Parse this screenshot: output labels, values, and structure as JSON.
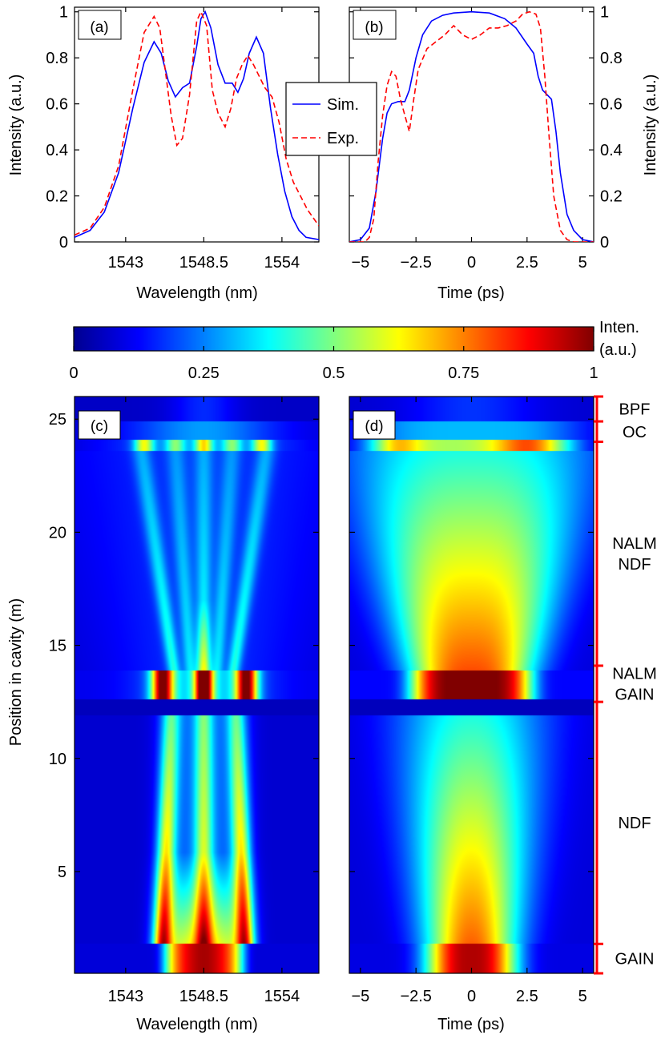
{
  "chart_data": [
    {
      "panel": "(a)",
      "type": "line",
      "xlabel": "Wavelength (nm)",
      "ylabel": "Intensity (a.u.)",
      "xlim": [
        1539.4,
        1556.6
      ],
      "ylim": [
        0,
        1.02
      ],
      "xticks": [
        1543,
        1548.5,
        1554
      ],
      "xtick_labels": [
        "1543",
        "1548.5",
        "1554"
      ],
      "yticks": [
        0,
        0.2,
        0.4,
        0.6,
        0.8,
        1
      ],
      "ytick_labels": [
        "0",
        "0.2",
        "0.4",
        "0.6",
        "0.8",
        "1"
      ],
      "series": [
        {
          "name": "Sim.",
          "color": "#0000ff",
          "dash": "solid",
          "x": [
            1539.4,
            1540.5,
            1541.5,
            1542.5,
            1543.5,
            1544.3,
            1545.0,
            1545.5,
            1546.0,
            1546.5,
            1547.0,
            1547.5,
            1548.0,
            1548.3,
            1548.6,
            1549.0,
            1549.5,
            1550.0,
            1550.5,
            1550.9,
            1551.3,
            1551.7,
            1552.2,
            1552.7,
            1553.2,
            1553.7,
            1554.2,
            1554.7,
            1555.2,
            1555.7,
            1556.6
          ],
          "y": [
            0.02,
            0.05,
            0.13,
            0.3,
            0.58,
            0.78,
            0.87,
            0.82,
            0.7,
            0.63,
            0.67,
            0.69,
            0.85,
            0.97,
            1.0,
            0.93,
            0.77,
            0.69,
            0.69,
            0.65,
            0.71,
            0.82,
            0.89,
            0.82,
            0.58,
            0.38,
            0.22,
            0.11,
            0.05,
            0.02,
            0.01
          ]
        },
        {
          "name": "Exp.",
          "color": "#ff0000",
          "dash": "dashed",
          "x": [
            1539.4,
            1540.5,
            1541.5,
            1542.5,
            1543.5,
            1544.3,
            1545.0,
            1545.4,
            1545.8,
            1546.2,
            1546.6,
            1547.0,
            1547.5,
            1548.0,
            1548.3,
            1548.7,
            1549.1,
            1549.5,
            1550.0,
            1550.4,
            1550.8,
            1551.2,
            1551.6,
            1552.0,
            1552.4,
            1552.8,
            1553.3,
            1553.8,
            1554.3,
            1554.8,
            1555.3,
            1555.8,
            1556.6
          ],
          "y": [
            0.03,
            0.06,
            0.15,
            0.33,
            0.66,
            0.91,
            0.98,
            0.93,
            0.74,
            0.55,
            0.42,
            0.45,
            0.64,
            0.96,
            1.0,
            0.94,
            0.66,
            0.56,
            0.5,
            0.58,
            0.71,
            0.77,
            0.81,
            0.77,
            0.72,
            0.67,
            0.63,
            0.52,
            0.36,
            0.26,
            0.2,
            0.14,
            0.07
          ]
        }
      ]
    },
    {
      "panel": "(b)",
      "type": "line",
      "xlabel": "Time (ps)",
      "ylabel": "Intensity (a.u.)",
      "xlim": [
        -5.5,
        5.5
      ],
      "ylim": [
        0,
        1.02
      ],
      "xticks": [
        -5,
        -2.5,
        0,
        2.5,
        5
      ],
      "xtick_labels": [
        "−5",
        "−2.5",
        "0",
        "2.5",
        "5"
      ],
      "yticks": [
        0,
        0.2,
        0.4,
        0.6,
        0.8,
        1
      ],
      "ytick_labels": [
        "0",
        "0.2",
        "0.4",
        "0.6",
        "0.8",
        "1"
      ],
      "series": [
        {
          "name": "Sim.",
          "color": "#0000ff",
          "dash": "solid",
          "x": [
            -5.5,
            -5.0,
            -4.6,
            -4.3,
            -4.0,
            -3.8,
            -3.6,
            -3.3,
            -3.0,
            -2.8,
            -2.5,
            -2.2,
            -1.8,
            -1.3,
            -0.8,
            0,
            0.8,
            1.5,
            2.0,
            2.5,
            2.8,
            3.0,
            3.2,
            3.4,
            3.6,
            3.8,
            4.0,
            4.3,
            4.6,
            5.0,
            5.5
          ],
          "y": [
            0.0,
            0.01,
            0.06,
            0.22,
            0.45,
            0.56,
            0.6,
            0.61,
            0.61,
            0.66,
            0.8,
            0.9,
            0.96,
            0.985,
            0.995,
            1.0,
            0.995,
            0.97,
            0.93,
            0.86,
            0.82,
            0.72,
            0.66,
            0.64,
            0.62,
            0.48,
            0.3,
            0.12,
            0.05,
            0.01,
            0.0
          ]
        },
        {
          "name": "Exp.",
          "color": "#ff0000",
          "dash": "dashed",
          "x": [
            -5.5,
            -4.8,
            -4.6,
            -4.4,
            -4.2,
            -4.0,
            -3.8,
            -3.6,
            -3.4,
            -3.2,
            -3.0,
            -2.8,
            -2.6,
            -2.4,
            -2.0,
            -1.6,
            -1.2,
            -0.8,
            -0.4,
            0,
            0.4,
            0.8,
            1.2,
            1.6,
            2.0,
            2.3,
            2.6,
            2.9,
            3.1,
            3.3,
            3.5,
            3.7,
            4.0,
            4.3,
            4.6,
            5.0,
            5.5
          ],
          "y": [
            0.0,
            0.0,
            0.02,
            0.1,
            0.35,
            0.55,
            0.68,
            0.74,
            0.72,
            0.62,
            0.55,
            0.48,
            0.62,
            0.75,
            0.84,
            0.87,
            0.9,
            0.94,
            0.9,
            0.88,
            0.9,
            0.93,
            0.93,
            0.94,
            0.96,
            0.99,
            1.0,
            0.99,
            0.93,
            0.72,
            0.45,
            0.2,
            0.05,
            0.01,
            0.0,
            0.0,
            0.0
          ]
        }
      ]
    },
    {
      "panel": "(c)",
      "type": "heatmap",
      "xlabel": "Wavelength (nm)",
      "ylabel": "Position in cavity (m)",
      "xlim": [
        1539.4,
        1556.6
      ],
      "ylim": [
        0.5,
        26
      ],
      "xticks": [
        1543,
        1548.5,
        1554
      ],
      "xtick_labels": [
        "1543",
        "1548.5",
        "1554"
      ],
      "yticks": [
        5,
        10,
        15,
        20,
        25
      ],
      "ytick_labels": [
        "5",
        "10",
        "15",
        "20",
        "25"
      ],
      "colormap": "jet",
      "center": 1548.5
    },
    {
      "panel": "(d)",
      "type": "heatmap",
      "xlabel": "Time (ps)",
      "ylabel": "",
      "xlim": [
        -5.5,
        5.5
      ],
      "ylim": [
        0.5,
        26
      ],
      "xticks": [
        -5,
        -2.5,
        0,
        2.5,
        5
      ],
      "xtick_labels": [
        "−5",
        "−2.5",
        "0",
        "2.5",
        "5"
      ],
      "colormap": "jet"
    }
  ],
  "legend": {
    "items": [
      "Sim.",
      "Exp."
    ]
  },
  "colorbar": {
    "title_line1": "Inten.",
    "title_line2": "(a.u.)",
    "ticks": [
      0,
      0.25,
      0.5,
      0.75,
      1
    ],
    "tick_labels": [
      "0",
      "0.25",
      "0.5",
      "0.75",
      "1"
    ]
  },
  "cavity_sections": [
    {
      "label": "BPF",
      "from": 24.9,
      "to": 26.0
    },
    {
      "label": "OC",
      "from": 24.0,
      "to": 24.9
    },
    {
      "label": "NALM NDF",
      "lines": [
        "NALM",
        "NDF"
      ],
      "from": 14.1,
      "to": 24.0
    },
    {
      "label": "NALM GAIN",
      "lines": [
        "NALM",
        "GAIN"
      ],
      "from": 12.5,
      "to": 14.1
    },
    {
      "label": "NDF",
      "from": 1.8,
      "to": 12.5
    },
    {
      "label": "GAIN",
      "from": 0.5,
      "to": 1.8
    }
  ],
  "colors": {
    "sim": "#0000ff",
    "exp": "#ff0000",
    "bracket": "#ff0000"
  }
}
